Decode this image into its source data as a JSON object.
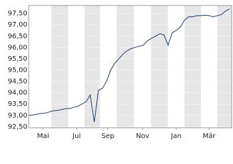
{
  "chart_data": {
    "type": "line",
    "x": [
      0,
      1,
      2,
      3,
      4,
      5,
      6,
      7,
      8,
      9,
      10,
      11,
      12,
      13,
      14,
      15,
      16,
      17,
      18,
      19,
      20,
      21,
      22,
      23,
      24,
      25,
      26,
      27,
      28,
      29,
      30,
      31,
      32,
      33,
      34,
      35,
      36,
      37,
      38,
      39,
      40,
      41,
      42,
      43,
      44,
      45,
      46,
      47,
      48,
      49
    ],
    "values": [
      93.0,
      93.02,
      93.05,
      93.08,
      93.1,
      93.15,
      93.2,
      93.22,
      93.25,
      93.3,
      93.3,
      93.35,
      93.4,
      93.5,
      93.6,
      93.9,
      92.7,
      94.1,
      94.2,
      94.5,
      95.0,
      95.3,
      95.5,
      95.7,
      95.85,
      95.95,
      96.0,
      96.05,
      96.1,
      96.3,
      96.4,
      96.5,
      96.6,
      96.55,
      96.1,
      96.65,
      96.75,
      96.9,
      97.2,
      97.35,
      97.35,
      97.4,
      97.4,
      97.42,
      97.4,
      97.35,
      97.4,
      97.45,
      97.6,
      97.7
    ],
    "color": "#1a3a78",
    "xlim": [
      0,
      49.5
    ],
    "xticks": [
      {
        "value": 3.5,
        "label": "Mai"
      },
      {
        "value": 11.7,
        "label": "Jul"
      },
      {
        "value": 19.3,
        "label": "Sep"
      },
      {
        "value": 27.8,
        "label": "Nov"
      },
      {
        "value": 36,
        "label": "Jan"
      },
      {
        "value": 44,
        "label": "Mär"
      }
    ],
    "ylim": [
      92.45,
      97.85
    ],
    "yticks": [
      {
        "value": 92.5,
        "label": "92,50"
      },
      {
        "value": 93,
        "label": "93,00"
      },
      {
        "value": 93.5,
        "label": "93,50"
      },
      {
        "value": 94,
        "label": "94,00"
      },
      {
        "value": 94.5,
        "label": "94,50"
      },
      {
        "value": 95,
        "label": "95,00"
      },
      {
        "value": 95.5,
        "label": "95,50"
      },
      {
        "value": 96,
        "label": "96,00"
      },
      {
        "value": 96.5,
        "label": "96,50"
      },
      {
        "value": 97,
        "label": "97,00"
      },
      {
        "value": 97.5,
        "label": "97,50"
      }
    ],
    "grid": true
  }
}
